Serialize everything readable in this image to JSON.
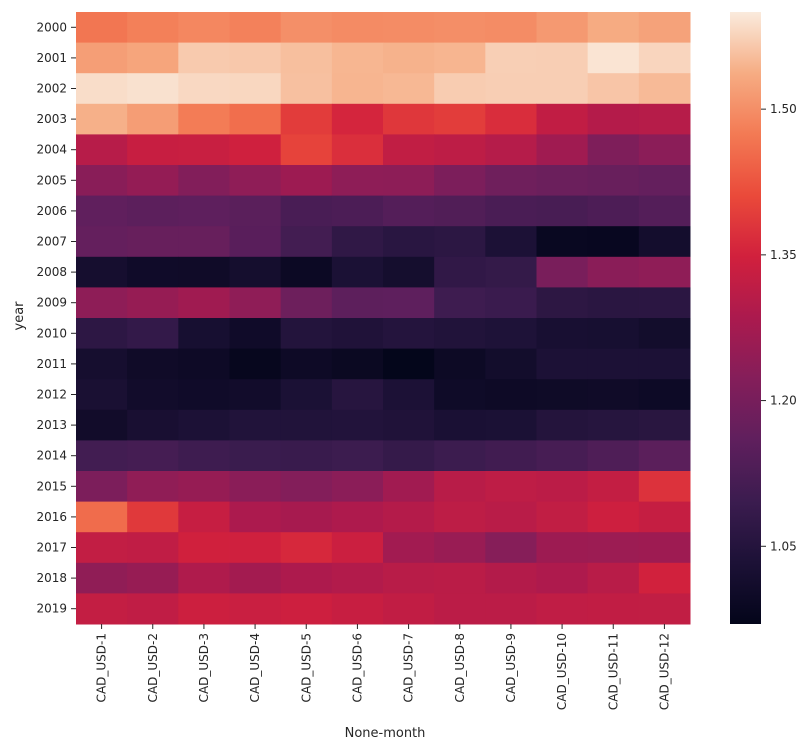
{
  "chart_data": {
    "type": "heatmap",
    "xlabel": "None-month",
    "ylabel": "year",
    "x_categories": [
      "CAD_USD-1",
      "CAD_USD-2",
      "CAD_USD-3",
      "CAD_USD-4",
      "CAD_USD-5",
      "CAD_USD-6",
      "CAD_USD-7",
      "CAD_USD-8",
      "CAD_USD-9",
      "CAD_USD-10",
      "CAD_USD-11",
      "CAD_USD-12"
    ],
    "y_categories": [
      "2000",
      "2001",
      "2002",
      "2003",
      "2004",
      "2005",
      "2006",
      "2007",
      "2008",
      "2009",
      "2010",
      "2011",
      "2012",
      "2013",
      "2014",
      "2015",
      "2016",
      "2017",
      "2018",
      "2019"
    ],
    "values": [
      [
        1.469,
        1.481,
        1.49,
        1.483,
        1.501,
        1.496,
        1.497,
        1.499,
        1.497,
        1.513,
        1.536,
        1.525
      ],
      [
        1.519,
        1.528,
        1.567,
        1.565,
        1.556,
        1.547,
        1.543,
        1.546,
        1.572,
        1.571,
        1.593,
        1.578
      ],
      [
        1.586,
        1.59,
        1.581,
        1.58,
        1.557,
        1.546,
        1.549,
        1.569,
        1.571,
        1.571,
        1.562,
        1.551
      ],
      [
        1.541,
        1.518,
        1.477,
        1.458,
        1.39,
        1.355,
        1.383,
        1.391,
        1.367,
        1.321,
        1.3,
        1.303
      ],
      [
        1.305,
        1.332,
        1.333,
        1.345,
        1.4,
        1.37,
        1.322,
        1.315,
        1.301,
        1.268,
        1.212,
        1.233
      ],
      [
        1.23,
        1.248,
        1.218,
        1.24,
        1.262,
        1.238,
        1.236,
        1.209,
        1.187,
        1.18,
        1.175,
        1.168
      ],
      [
        1.161,
        1.153,
        1.158,
        1.15,
        1.121,
        1.126,
        1.139,
        1.134,
        1.123,
        1.118,
        1.127,
        1.139
      ],
      [
        1.168,
        1.173,
        1.172,
        1.148,
        1.11,
        1.073,
        1.06,
        1.066,
        1.033,
        0.985,
        0.983,
        1.012
      ],
      [
        1.017,
        1.003,
        1.002,
        1.015,
        0.993,
        1.031,
        1.016,
        1.075,
        1.082,
        1.204,
        1.231,
        1.239
      ],
      [
        1.238,
        1.251,
        1.267,
        1.24,
        1.183,
        1.155,
        1.158,
        1.102,
        1.093,
        1.067,
        1.061,
        1.063
      ],
      [
        1.068,
        1.08,
        1.021,
        1.003,
        1.048,
        1.041,
        1.05,
        1.044,
        1.038,
        1.024,
        1.021,
        1.01
      ],
      [
        1.018,
        1.002,
        0.998,
        0.979,
        0.997,
        0.989,
        0.973,
        0.994,
        1.011,
        1.032,
        1.034,
        1.033
      ],
      [
        1.027,
        1.009,
        1.003,
        1.008,
        1.031,
        1.056,
        1.032,
        1.001,
        0.997,
        0.999,
        1.002,
        0.996
      ],
      [
        1.007,
        1.025,
        1.033,
        1.044,
        1.043,
        1.046,
        1.041,
        1.028,
        1.031,
        1.049,
        1.054,
        1.059
      ],
      [
        1.108,
        1.113,
        1.102,
        1.094,
        1.092,
        1.098,
        1.084,
        1.097,
        1.106,
        1.117,
        1.131,
        1.152
      ],
      [
        1.208,
        1.242,
        1.251,
        1.231,
        1.22,
        1.233,
        1.269,
        1.306,
        1.316,
        1.311,
        1.325,
        1.375
      ],
      [
        1.455,
        1.385,
        1.329,
        1.286,
        1.279,
        1.29,
        1.3,
        1.315,
        1.309,
        1.322,
        1.341,
        1.328
      ],
      [
        1.323,
        1.32,
        1.347,
        1.344,
        1.36,
        1.338,
        1.271,
        1.256,
        1.225,
        1.262,
        1.261,
        1.264
      ],
      [
        1.242,
        1.252,
        1.291,
        1.272,
        1.288,
        1.296,
        1.306,
        1.31,
        1.298,
        1.29,
        1.307,
        1.349
      ],
      [
        1.325,
        1.32,
        1.34,
        1.335,
        1.341,
        1.332,
        1.321,
        1.311,
        1.311,
        1.319,
        1.321,
        1.322
      ]
    ],
    "colormap": "rocket",
    "vmin": 0.97,
    "vmax": 1.6,
    "colorbar_ticks": [
      1.05,
      1.2,
      1.35,
      1.5
    ],
    "colorbar_tick_labels": [
      "1.05",
      "1.20",
      "1.35",
      "1.50"
    ]
  }
}
